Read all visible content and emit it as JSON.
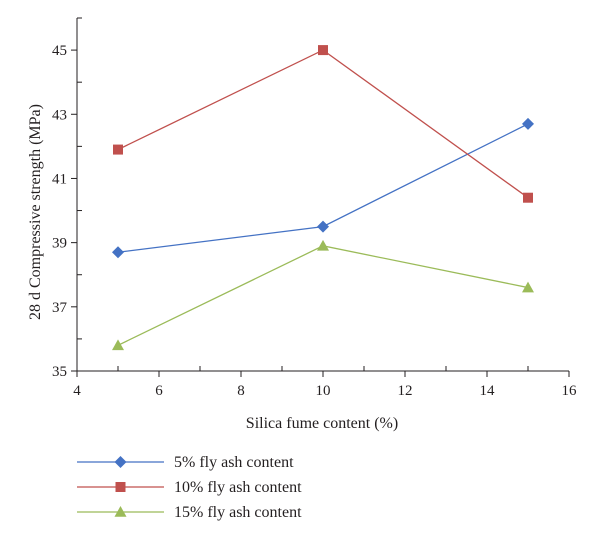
{
  "chart_data": {
    "type": "line",
    "title": "",
    "xlabel": "Silica fume content (%)",
    "ylabel": "28 d Compressive strength (MPa)",
    "xlim": [
      4,
      16
    ],
    "ylim": [
      35,
      46
    ],
    "xticks": [
      4,
      6,
      8,
      10,
      12,
      14,
      16
    ],
    "yticks": [
      35,
      37,
      39,
      41,
      43,
      45
    ],
    "grid": false,
    "legend_position": "bottom-left",
    "series": [
      {
        "name": "5% fly ash content",
        "marker": "diamond",
        "color": "#4472c4",
        "x": [
          5,
          10,
          15
        ],
        "y": [
          38.7,
          39.5,
          42.7
        ]
      },
      {
        "name": "10% fly ash content",
        "marker": "square",
        "color": "#c0504d",
        "x": [
          5,
          10,
          15
        ],
        "y": [
          41.9,
          45.0,
          40.4
        ]
      },
      {
        "name": "15% fly ash content",
        "marker": "triangle",
        "color": "#9bbb59",
        "x": [
          5,
          10,
          15
        ],
        "y": [
          35.8,
          38.9,
          37.6
        ]
      }
    ]
  }
}
